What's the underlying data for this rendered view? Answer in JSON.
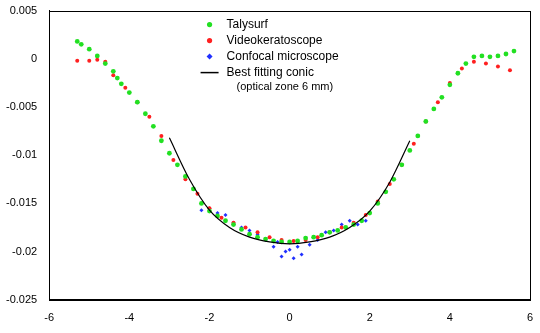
{
  "chart_data": {
    "type": "scatter",
    "xlim": [
      -6,
      6
    ],
    "xticks": [
      -6,
      -4,
      -2,
      0,
      2,
      4,
      6
    ],
    "ylim": [
      -0.025,
      0.005
    ],
    "yticks": [
      -0.025,
      -0.02,
      -0.015,
      -0.01,
      -0.005,
      0,
      0.005
    ],
    "grid": false,
    "legend": "top",
    "annotations": [
      {
        "text": "(optical zone 6 mm)"
      }
    ],
    "series": [
      {
        "name": "Talysurf",
        "color": "#22e022",
        "marker": "circle",
        "x": [
          -5.3,
          -5.2,
          -5.0,
          -4.8,
          -4.6,
          -4.4,
          -4.3,
          -4.2,
          -4.0,
          -3.8,
          -3.6,
          -3.4,
          -3.2,
          -3.0,
          -2.8,
          -2.6,
          -2.4,
          -2.2,
          -2.0,
          -1.8,
          -1.6,
          -1.4,
          -1.2,
          -1.0,
          -0.8,
          -0.6,
          -0.4,
          -0.2,
          0.0,
          0.2,
          0.4,
          0.6,
          0.8,
          1.0,
          1.2,
          1.4,
          1.6,
          1.8,
          2.0,
          2.2,
          2.4,
          2.6,
          2.8,
          3.0,
          3.2,
          3.4,
          3.6,
          3.8,
          4.0,
          4.2,
          4.4,
          4.6,
          4.8,
          5.0,
          5.2,
          5.4,
          5.6
        ],
        "values": [
          0.0018,
          0.0015,
          0.001,
          0.0003,
          -0.0005,
          -0.0013,
          -0.002,
          -0.0026,
          -0.0035,
          -0.0045,
          -0.0057,
          -0.007,
          -0.0085,
          -0.0098,
          -0.011,
          -0.0122,
          -0.0135,
          -0.015,
          -0.0158,
          -0.0163,
          -0.0168,
          -0.0172,
          -0.0177,
          -0.0182,
          -0.0185,
          -0.0187,
          -0.0189,
          -0.019,
          -0.019,
          -0.0189,
          -0.0186,
          -0.0185,
          -0.0183,
          -0.018,
          -0.0178,
          -0.0175,
          -0.0172,
          -0.0168,
          -0.016,
          -0.015,
          -0.0138,
          -0.0125,
          -0.011,
          -0.0095,
          -0.008,
          -0.0065,
          -0.0052,
          -0.004,
          -0.0027,
          -0.0015,
          -0.0005,
          0.0002,
          0.0003,
          0.0002,
          0.0003,
          0.0005,
          0.0008
        ]
      },
      {
        "name": "Videokeratoscope",
        "color": "#ff2020",
        "marker": "circle",
        "x": [
          -5.3,
          -5.0,
          -4.8,
          -4.6,
          -4.4,
          -4.1,
          -3.8,
          -3.5,
          -3.2,
          -2.9,
          -2.6,
          -2.3,
          -2.0,
          -1.7,
          -1.4,
          -1.1,
          -0.8,
          -0.5,
          -0.2,
          0.1,
          0.4,
          0.7,
          1.0,
          1.3,
          1.6,
          1.9,
          2.2,
          2.5,
          2.8,
          3.1,
          3.4,
          3.7,
          4.0,
          4.3,
          4.6,
          4.9,
          5.2,
          5.5
        ],
        "values": [
          -0.0002,
          -0.0002,
          -0.0001,
          -0.0003,
          -0.0017,
          -0.003,
          -0.0045,
          -0.006,
          -0.008,
          -0.0105,
          -0.0125,
          -0.014,
          -0.0155,
          -0.0165,
          -0.017,
          -0.0175,
          -0.018,
          -0.0185,
          -0.0188,
          -0.0189,
          -0.0188,
          -0.0185,
          -0.018,
          -0.0175,
          -0.017,
          -0.0162,
          -0.0148,
          -0.013,
          -0.011,
          -0.0088,
          -0.0065,
          -0.0045,
          -0.0025,
          -0.001,
          -0.0003,
          -0.0005,
          -0.0008,
          -0.0012
        ]
      },
      {
        "name": "Confocal microscope",
        "color": "#2030ff",
        "marker": "diamond",
        "x": [
          -2.2,
          -2.0,
          -1.8,
          -1.6,
          -1.4,
          -1.2,
          -1.0,
          -0.8,
          -0.6,
          -0.4,
          -0.3,
          -0.2,
          -0.1,
          0.0,
          0.1,
          0.2,
          0.3,
          0.5,
          0.7,
          0.9,
          1.1,
          1.3,
          1.5,
          1.7,
          1.9
        ],
        "values": [
          -0.0157,
          -0.0155,
          -0.016,
          -0.0162,
          -0.017,
          -0.0175,
          -0.0178,
          -0.0182,
          -0.0188,
          -0.0195,
          -0.019,
          -0.0205,
          -0.02,
          -0.0198,
          -0.0207,
          -0.0195,
          -0.0203,
          -0.0193,
          -0.0188,
          -0.018,
          -0.0178,
          -0.0172,
          -0.0168,
          -0.0172,
          -0.0168
        ]
      },
      {
        "name": "Best fitting conic",
        "color": "#000000",
        "type": "line",
        "marker": "none",
        "line_style": "solid",
        "x": [
          -3.0,
          -2.5,
          -2.0,
          -1.5,
          -1.0,
          -0.5,
          0.0,
          0.5,
          1.0,
          1.5,
          2.0,
          2.5,
          3.0
        ],
        "values": [
          -0.0082,
          -0.0125,
          -0.0157,
          -0.0175,
          -0.0185,
          -0.019,
          -0.0192,
          -0.019,
          -0.0185,
          -0.0175,
          -0.0158,
          -0.0128,
          -0.0085
        ]
      }
    ]
  }
}
